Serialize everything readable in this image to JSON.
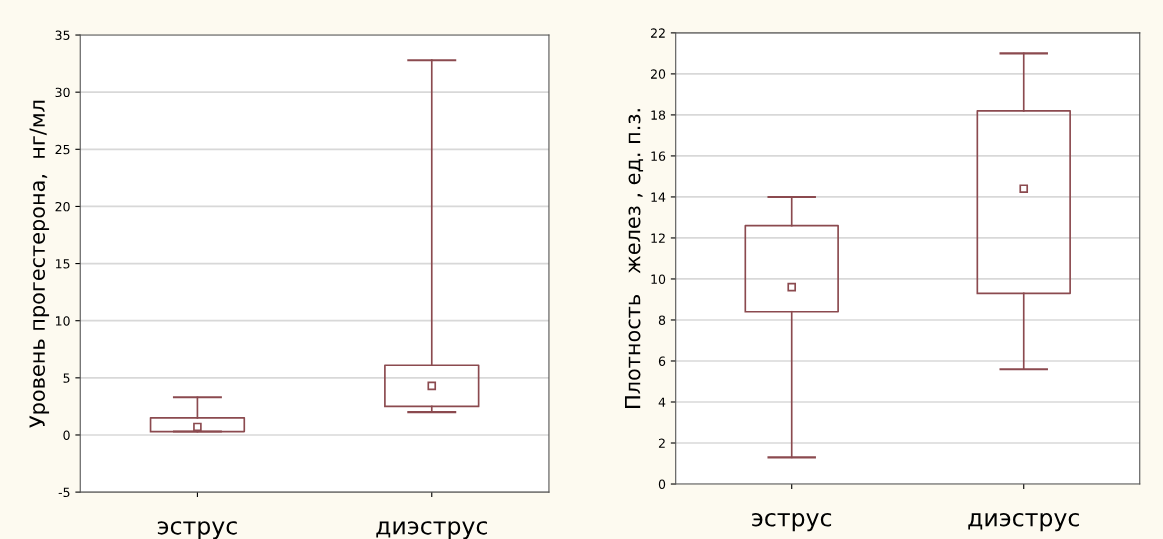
{
  "chart_data": [
    {
      "type": "box",
      "ylabel": "Уровень прогестерона,  нг/мл",
      "categories": [
        "эструс",
        "диэструс"
      ],
      "color": "#8b4a4f",
      "ylim": [
        -5,
        35
      ],
      "yticks": [
        -5,
        0,
        5,
        10,
        15,
        20,
        25,
        30,
        35
      ],
      "grid": "y",
      "marker": "square",
      "boxes": [
        {
          "low": 0.3,
          "q1": 0.3,
          "median": 0.7,
          "q3": 1.5,
          "high": 3.3
        },
        {
          "low": 2.0,
          "q1": 2.5,
          "median": 4.3,
          "q3": 6.1,
          "high": 32.8
        }
      ]
    },
    {
      "type": "box",
      "ylabel": "Плотность   желез , ед. п.з.",
      "categories": [
        "эструс",
        "диэструс"
      ],
      "color": "#8b4a4f",
      "ylim": [
        0,
        22
      ],
      "yticks": [
        0,
        2,
        4,
        6,
        8,
        10,
        12,
        14,
        16,
        18,
        20,
        22
      ],
      "grid": "y",
      "marker": "square",
      "boxes": [
        {
          "low": 1.3,
          "q1": 8.4,
          "median": 9.6,
          "q3": 12.6,
          "high": 14.0
        },
        {
          "low": 5.6,
          "q1": 9.3,
          "median": 14.4,
          "q3": 18.2,
          "high": 21.0
        }
      ]
    }
  ]
}
